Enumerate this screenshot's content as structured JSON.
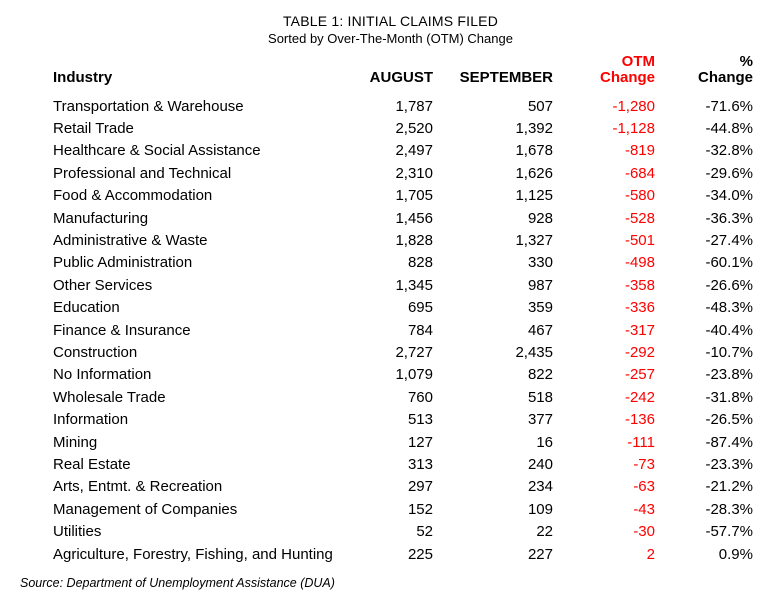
{
  "colors": {
    "otm_accent": "#ff0000",
    "text": "#000000",
    "background": "#ffffff"
  },
  "source_note": "Source: Department of Unemployment Assistance (DUA)",
  "chart_data": {
    "type": "table",
    "title": "TABLE 1: INITIAL CLAIMS FILED",
    "subtitle": "Sorted by Over-The-Month (OTM) Change",
    "columns": {
      "industry": "Industry",
      "august": "AUGUST",
      "september": "SEPTEMBER",
      "otm": [
        "OTM",
        "Change"
      ],
      "pct": [
        "%",
        "Change"
      ]
    },
    "rows": [
      {
        "industry": "Transportation & Warehouse",
        "august": "1,787",
        "september": "507",
        "otm": "-1,280",
        "pct": "-71.6%"
      },
      {
        "industry": "Retail Trade",
        "august": "2,520",
        "september": "1,392",
        "otm": "-1,128",
        "pct": "-44.8%"
      },
      {
        "industry": "Healthcare & Social Assistance",
        "august": "2,497",
        "september": "1,678",
        "otm": "-819",
        "pct": "-32.8%"
      },
      {
        "industry": "Professional and Technical",
        "august": "2,310",
        "september": "1,626",
        "otm": "-684",
        "pct": "-29.6%"
      },
      {
        "industry": "Food & Accommodation",
        "august": "1,705",
        "september": "1,125",
        "otm": "-580",
        "pct": "-34.0%"
      },
      {
        "industry": "Manufacturing",
        "august": "1,456",
        "september": "928",
        "otm": "-528",
        "pct": "-36.3%"
      },
      {
        "industry": "Administrative & Waste",
        "august": "1,828",
        "september": "1,327",
        "otm": "-501",
        "pct": "-27.4%"
      },
      {
        "industry": "Public Administration",
        "august": "828",
        "september": "330",
        "otm": "-498",
        "pct": "-60.1%"
      },
      {
        "industry": "Other Services",
        "august": "1,345",
        "september": "987",
        "otm": "-358",
        "pct": "-26.6%"
      },
      {
        "industry": "Education",
        "august": "695",
        "september": "359",
        "otm": "-336",
        "pct": "-48.3%"
      },
      {
        "industry": "Finance & Insurance",
        "august": "784",
        "september": "467",
        "otm": "-317",
        "pct": "-40.4%"
      },
      {
        "industry": "Construction",
        "august": "2,727",
        "september": "2,435",
        "otm": "-292",
        "pct": "-10.7%"
      },
      {
        "industry": "No Information",
        "august": "1,079",
        "september": "822",
        "otm": "-257",
        "pct": "-23.8%"
      },
      {
        "industry": "Wholesale Trade",
        "august": "760",
        "september": "518",
        "otm": "-242",
        "pct": "-31.8%"
      },
      {
        "industry": "Information",
        "august": "513",
        "september": "377",
        "otm": "-136",
        "pct": "-26.5%"
      },
      {
        "industry": "Mining",
        "august": "127",
        "september": "16",
        "otm": "-111",
        "pct": "-87.4%"
      },
      {
        "industry": "Real Estate",
        "august": "313",
        "september": "240",
        "otm": "-73",
        "pct": "-23.3%"
      },
      {
        "industry": "Arts, Entmt. & Recreation",
        "august": "297",
        "september": "234",
        "otm": "-63",
        "pct": "-21.2%"
      },
      {
        "industry": "Management of Companies",
        "august": "152",
        "september": "109",
        "otm": "-43",
        "pct": "-28.3%"
      },
      {
        "industry": "Utilities",
        "august": "52",
        "september": "22",
        "otm": "-30",
        "pct": "-57.7%"
      },
      {
        "industry": "Agriculture, Forestry, Fishing, and Hunting",
        "august": "225",
        "september": "227",
        "otm": "2",
        "pct": "0.9%"
      }
    ]
  }
}
